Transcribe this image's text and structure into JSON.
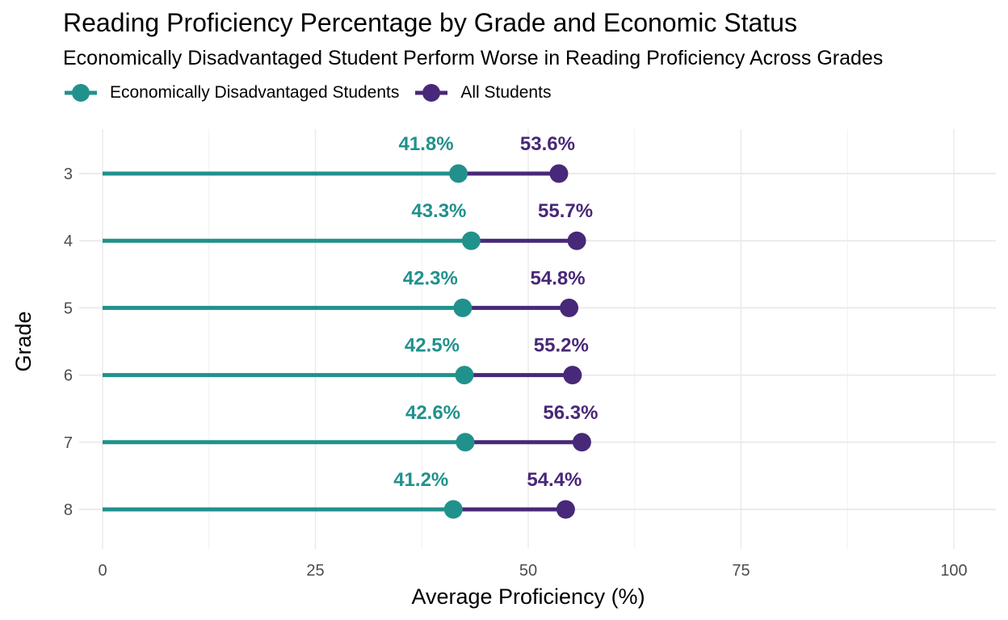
{
  "chart_data": {
    "type": "dumbbell",
    "title": "Reading Proficiency Percentage by Grade and Economic Status",
    "subtitle": "Economically Disadvantaged Student Perform Worse in Reading Proficiency Across Grades",
    "xlabel": "Average Proficiency (%)",
    "ylabel": "Grade",
    "xlim": [
      0,
      100
    ],
    "x_ticks": [
      "0",
      "25",
      "50",
      "75",
      "100"
    ],
    "categories": [
      "3",
      "4",
      "5",
      "6",
      "7",
      "8"
    ],
    "series": [
      {
        "name": "Economically Disadvantaged Students",
        "color": "#21918c",
        "values": [
          41.8,
          43.3,
          42.3,
          42.5,
          42.6,
          41.2
        ],
        "labels": [
          "41.8%",
          "43.3%",
          "42.3%",
          "42.5%",
          "42.6%",
          "41.2%"
        ]
      },
      {
        "name": "All Students",
        "color": "#482878",
        "values": [
          53.6,
          55.7,
          54.8,
          55.2,
          56.3,
          54.4
        ],
        "labels": [
          "53.6%",
          "55.7%",
          "54.8%",
          "55.2%",
          "56.3%",
          "54.4%"
        ]
      }
    ],
    "legend_position": "top-left",
    "grid": true
  }
}
